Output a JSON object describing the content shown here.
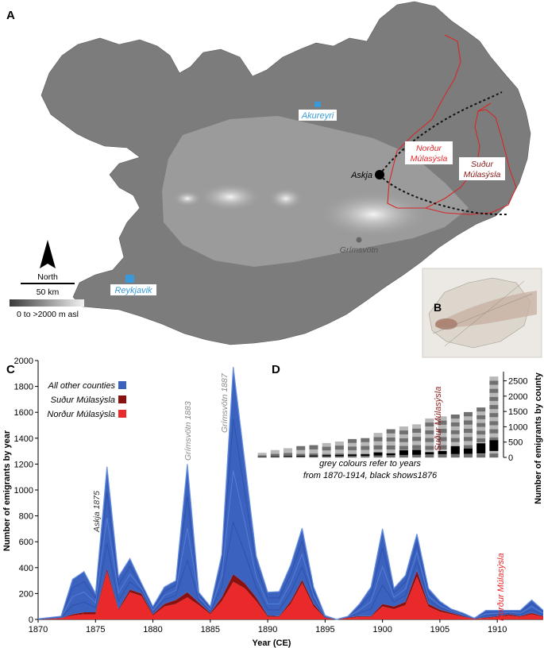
{
  "panels": {
    "a": "A",
    "b": "B",
    "c": "C",
    "d": "D"
  },
  "map": {
    "places": {
      "akureyri": "Akureyri",
      "reykjavik": "Reykjavik",
      "askja": "Askja",
      "grimsvotn": "Grímsvötn",
      "nordur_l1": "Norður",
      "nordur_l2": "Múlasýsla",
      "sudur_l1": "Suður",
      "sudur_l2": "Múlasýsla"
    },
    "north_label": "North",
    "scale_label": "50 km",
    "elevation_label": "0 to >2000 m asl",
    "colors": {
      "county_border": "#d62728",
      "town": "#3a9ad9",
      "nordur_text": "#e8262a",
      "sudur_text": "#8b1a1a"
    }
  },
  "chart_data": [
    {
      "type": "area",
      "panel": "C",
      "xlabel": "Year (CE)",
      "ylabel": "Number of emigrants by year",
      "xlim": [
        1870,
        1914
      ],
      "ylim": [
        0,
        2000
      ],
      "xticks": [
        1870,
        1875,
        1880,
        1885,
        1890,
        1895,
        1900,
        1905,
        1910
      ],
      "yticks": [
        0,
        200,
        400,
        600,
        800,
        1000,
        1200,
        1400,
        1600,
        1800,
        2000
      ],
      "x": [
        1870,
        1871,
        1872,
        1873,
        1874,
        1875,
        1876,
        1877,
        1878,
        1879,
        1880,
        1881,
        1882,
        1883,
        1884,
        1885,
        1886,
        1887,
        1888,
        1889,
        1890,
        1891,
        1892,
        1893,
        1894,
        1895,
        1896,
        1897,
        1898,
        1899,
        1900,
        1901,
        1902,
        1903,
        1904,
        1905,
        1906,
        1907,
        1908,
        1909,
        1910,
        1911,
        1912,
        1913,
        1914
      ],
      "series": [
        {
          "name": "Norður Múlasýsla",
          "color": "#ea2a2a",
          "values": [
            0,
            5,
            10,
            30,
            40,
            40,
            370,
            70,
            210,
            180,
            30,
            100,
            120,
            170,
            110,
            40,
            140,
            290,
            240,
            140,
            20,
            20,
            120,
            280,
            100,
            10,
            0,
            10,
            20,
            20,
            100,
            80,
            110,
            330,
            100,
            60,
            40,
            20,
            5,
            10,
            20,
            30,
            20,
            40,
            20
          ]
        },
        {
          "name": "Suður Múlasýsla",
          "color": "#8b1010",
          "values": [
            0,
            0,
            0,
            10,
            15,
            15,
            20,
            10,
            20,
            20,
            10,
            20,
            30,
            40,
            20,
            10,
            30,
            60,
            40,
            30,
            10,
            5,
            20,
            25,
            20,
            5,
            0,
            5,
            5,
            5,
            20,
            20,
            25,
            45,
            20,
            15,
            10,
            5,
            0,
            5,
            5,
            10,
            5,
            10,
            5
          ]
        },
        {
          "name": "All other counties",
          "color": "#3c62bf",
          "values": [
            5,
            10,
            15,
            270,
            315,
            145,
            790,
            250,
            240,
            80,
            60,
            130,
            150,
            990,
            80,
            50,
            330,
            1600,
            940,
            320,
            180,
            190,
            280,
            400,
            130,
            15,
            0,
            10,
            95,
            225,
            580,
            140,
            205,
            285,
            120,
            65,
            30,
            25,
            5,
            55,
            45,
            30,
            45,
            100,
            45
          ]
        }
      ],
      "annotations": [
        "Askja 1875",
        "Grímsvötn 1883",
        "Grímsvötn 1887"
      ]
    },
    {
      "type": "bar",
      "panel": "D",
      "ylabel": "Number of emigrants by county",
      "ylim": [
        0,
        2800
      ],
      "yticks": [
        0,
        500,
        1000,
        1500,
        2000,
        2500
      ],
      "values": [
        150,
        240,
        300,
        370,
        400,
        470,
        520,
        600,
        630,
        800,
        920,
        1010,
        1080,
        1270,
        1340,
        1400,
        1480,
        1630,
        2640
      ],
      "black_1876": [
        10,
        15,
        20,
        25,
        30,
        35,
        40,
        45,
        50,
        100,
        60,
        150,
        160,
        70,
        100,
        250,
        170,
        330,
        350
      ],
      "note_l1": "grey colours refer to years",
      "note_l2": "from 1870-1914, black shows1876",
      "labels": {
        "sudur": "Suður Múlasýsla",
        "nordur": "Norður Múlasýsla"
      },
      "colors": {
        "dark_grey": "#707070",
        "light_grey": "#b8b8b8",
        "black": "#000000"
      }
    }
  ]
}
